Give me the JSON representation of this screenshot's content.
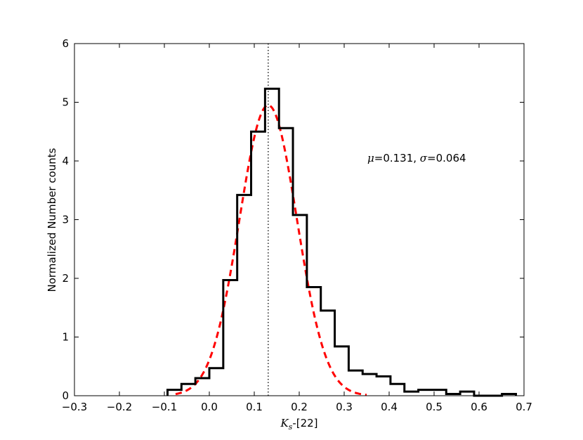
{
  "chart_data": {
    "type": "histogram",
    "xlabel": "K_s-[22]",
    "xlabel_parts": {
      "main": "K",
      "sub": "s",
      "rest": "-[22]"
    },
    "ylabel": "Normalized Number counts",
    "xlim": [
      -0.3,
      0.7
    ],
    "ylim": [
      0,
      6
    ],
    "xticks": [
      -0.3,
      -0.2,
      -0.1,
      0.0,
      0.1,
      0.2,
      0.3,
      0.4,
      0.5,
      0.6,
      0.7
    ],
    "xtick_labels": [
      "−0.3",
      "−0.2",
      "−0.1",
      "0.0",
      "0.1",
      "0.2",
      "0.3",
      "0.4",
      "0.5",
      "0.6",
      "0.7"
    ],
    "yticks": [
      0,
      1,
      2,
      3,
      4,
      5,
      6
    ],
    "ytick_labels": [
      "0",
      "1",
      "2",
      "3",
      "4",
      "5",
      "6"
    ],
    "histogram": {
      "bin_edges": [
        -0.093,
        -0.062,
        -0.031,
        0.0,
        0.031,
        0.062,
        0.093,
        0.124,
        0.155,
        0.186,
        0.217,
        0.248,
        0.279,
        0.31,
        0.341,
        0.372,
        0.403,
        0.434,
        0.465,
        0.496,
        0.527,
        0.558,
        0.589,
        0.62,
        0.651,
        0.682
      ],
      "values": [
        0.1,
        0.2,
        0.3,
        0.47,
        1.97,
        3.42,
        4.5,
        5.23,
        4.56,
        3.08,
        1.85,
        1.45,
        0.84,
        0.43,
        0.37,
        0.33,
        0.2,
        0.07,
        0.1,
        0.1,
        0.03,
        0.07,
        0.0,
        0.0,
        0.03
      ],
      "color": "#000000"
    },
    "gaussian_fit": {
      "mu": 0.131,
      "sigma": 0.064,
      "peak": 4.95,
      "x_range": [
        -0.075,
        0.35
      ],
      "color": "#ff0000",
      "style": "dashed"
    },
    "vline": {
      "x": 0.131,
      "style": "dotted",
      "color": "#000000"
    },
    "annotation": {
      "mu_symbol": "μ",
      "mu_text": "=0.131, ",
      "sigma_symbol": "σ",
      "sigma_text": "=0.064"
    }
  }
}
